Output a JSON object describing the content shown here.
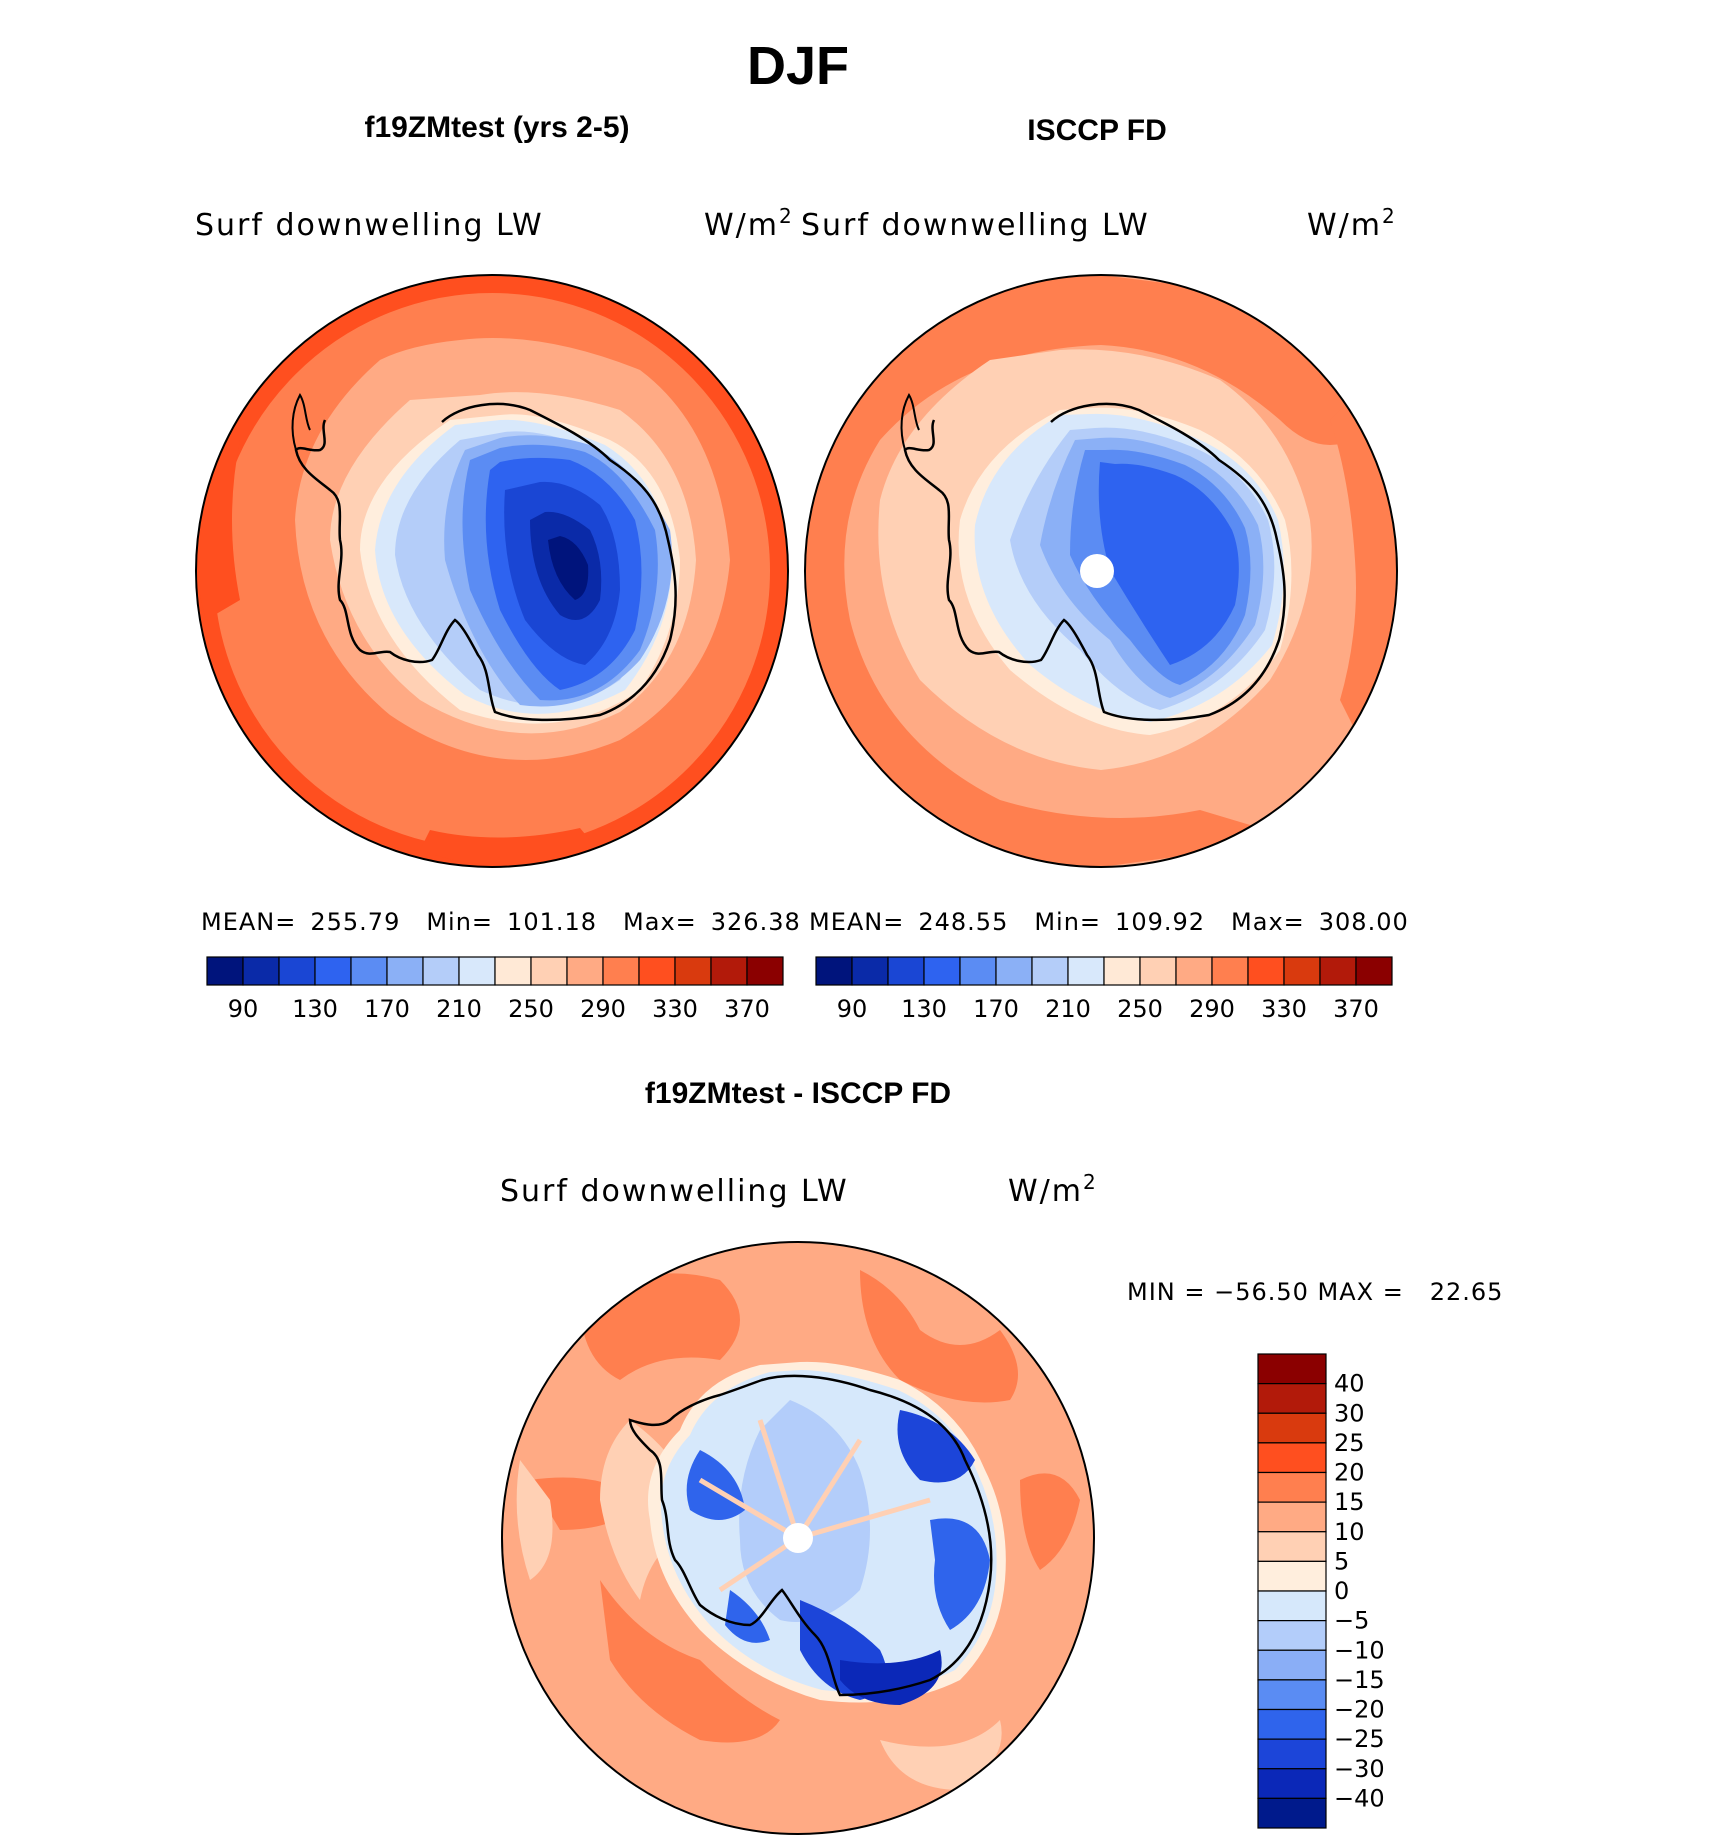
{
  "figure": {
    "title": "DJF"
  },
  "panels": [
    {
      "id": "model",
      "title": "f19ZMtest (yrs 2-5)",
      "variable": "Surf downwelling LW",
      "units": "W/m",
      "units_exp": "2",
      "stats": {
        "mean_label": "MEAN=",
        "mean": "255.79",
        "min_label": "Min=",
        "min": "101.18",
        "max_label": "Max=",
        "max": "326.38"
      },
      "has_pole_hole": false
    },
    {
      "id": "obs",
      "title": "ISCCP FD",
      "variable": "Surf downwelling LW",
      "units": "W/m",
      "units_exp": "2",
      "stats": {
        "mean_label": "MEAN=",
        "mean": "248.55",
        "min_label": "Min=",
        "min": "109.92",
        "max_label": "Max=",
        "max": "308.00"
      },
      "has_pole_hole": true
    }
  ],
  "difference": {
    "title": "f19ZMtest - ISCCP FD",
    "variable": "Surf downwelling LW",
    "units": "W/m",
    "units_exp": "2",
    "minmax_text": "MIN = −56.50 MAX =   22.65",
    "colorbar_labels": [
      "40",
      "30",
      "25",
      "20",
      "15",
      "10",
      "5",
      "0",
      "−5",
      "−10",
      "−15",
      "−20",
      "−25",
      "−30",
      "−40"
    ],
    "colors_top_to_bottom": [
      "#8b0000",
      "#b21a0a",
      "#d93a0e",
      "#ff4f1f",
      "#ff7f4f",
      "#ffaa84",
      "#ffd0b4",
      "#ffeedd",
      "#d6e8fb",
      "#b3cdfa",
      "#8aaef6",
      "#5a8cf3",
      "#2f64ec",
      "#1c45d9",
      "#0b28b8",
      "#001a8c"
    ]
  },
  "chart_data": [
    {
      "type": "heatmap",
      "title": "f19ZMtest (yrs 2-5)",
      "variable": "Surf downwelling LW",
      "units": "W/m2",
      "projection": "south polar stereographic",
      "mean": 255.79,
      "min": 101.18,
      "max": 326.38,
      "contour_levels": [
        90,
        110,
        130,
        150,
        170,
        190,
        210,
        230,
        250,
        270,
        290,
        310,
        330,
        350,
        370
      ],
      "colorbar_ticks": [
        "90",
        "130",
        "170",
        "210",
        "250",
        "290",
        "330",
        "370"
      ],
      "colors": [
        "#00147c",
        "#0a2aa8",
        "#1a46d4",
        "#2e63f0",
        "#5b8cf3",
        "#8bb0f6",
        "#b4cdf9",
        "#d8e8fb",
        "#ffe9d6",
        "#ffd0b4",
        "#ffaa84",
        "#ff7f4f",
        "#ff4f1f",
        "#d93a0e",
        "#b21a0a",
        "#8b0000"
      ]
    },
    {
      "type": "heatmap",
      "title": "ISCCP FD",
      "variable": "Surf downwelling LW",
      "units": "W/m2",
      "projection": "south polar stereographic",
      "mean": 248.55,
      "min": 109.92,
      "max": 308.0,
      "contour_levels": [
        90,
        110,
        130,
        150,
        170,
        190,
        210,
        230,
        250,
        270,
        290,
        310,
        330,
        350,
        370
      ],
      "colorbar_ticks": [
        "90",
        "130",
        "170",
        "210",
        "250",
        "290",
        "330",
        "370"
      ],
      "colors": [
        "#00147c",
        "#0a2aa8",
        "#1a46d4",
        "#2e63f0",
        "#5b8cf3",
        "#8bb0f6",
        "#b4cdf9",
        "#d8e8fb",
        "#ffe9d6",
        "#ffd0b4",
        "#ffaa84",
        "#ff7f4f",
        "#ff4f1f",
        "#d93a0e",
        "#b21a0a",
        "#8b0000"
      ]
    },
    {
      "type": "heatmap",
      "title": "f19ZMtest - ISCCP FD",
      "variable": "Surf downwelling LW",
      "units": "W/m2",
      "projection": "south polar stereographic",
      "min": -56.5,
      "max": 22.65,
      "contour_levels": [
        -40,
        -30,
        -25,
        -20,
        -15,
        -10,
        -5,
        0,
        5,
        10,
        15,
        20,
        25,
        30,
        40
      ]
    }
  ]
}
